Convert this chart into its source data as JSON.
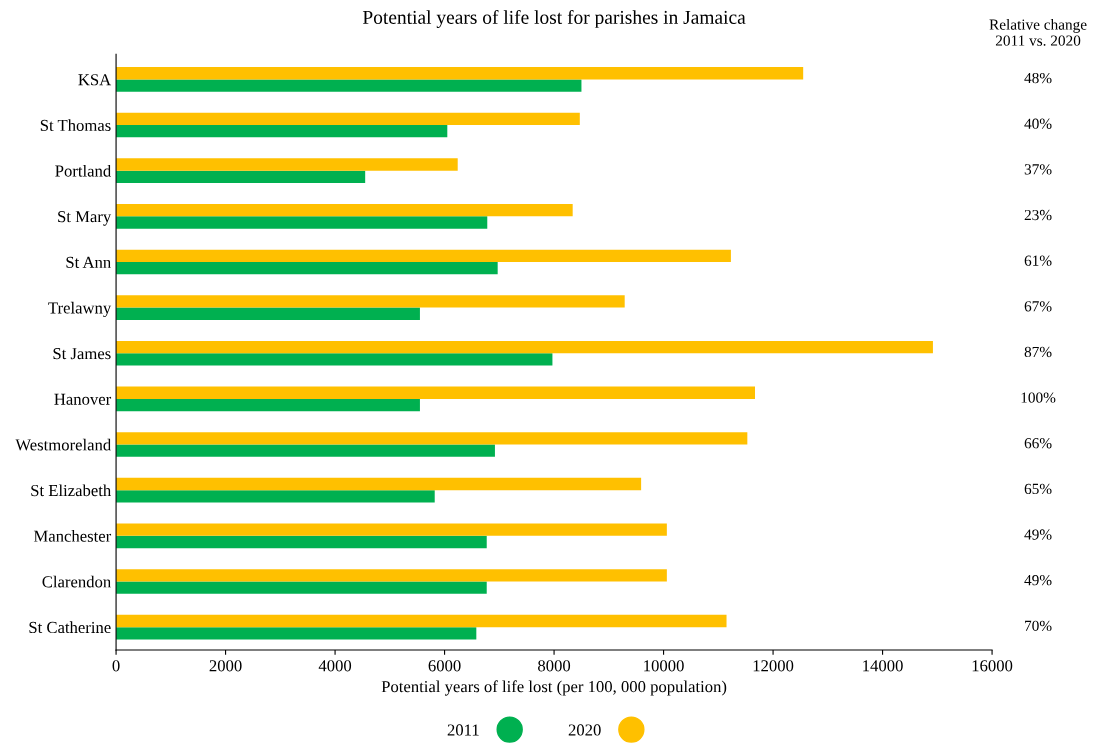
{
  "chart_data": {
    "type": "bar",
    "orientation": "horizontal",
    "title": "Potential years of life lost for parishes in Jamaica",
    "xlabel": "Potential years of life lost (per 100, 000 population)",
    "categories": [
      "KSA",
      "St Thomas",
      "Portland",
      "St Mary",
      "St Ann",
      "Trelawny",
      "St James",
      "Hanover",
      "Westmoreland",
      "St Elizabeth",
      "Manchester",
      "Clarendon",
      "St Catherine"
    ],
    "series": [
      {
        "name": "2011",
        "color": "#00b050",
        "values": [
          8500,
          6050,
          4550,
          6780,
          6970,
          5550,
          7970,
          5550,
          6920,
          5820,
          6770,
          6770,
          6580
        ]
      },
      {
        "name": "2020",
        "color": "#ffc000",
        "values": [
          12550,
          8470,
          6240,
          8340,
          11230,
          9290,
          14920,
          11670,
          11530,
          9590,
          10060,
          10060,
          11150
        ]
      }
    ],
    "xlim": [
      0,
      16000
    ],
    "xticks": [
      0,
      2000,
      4000,
      6000,
      8000,
      10000,
      12000,
      14000,
      16000
    ],
    "grid": false,
    "legend": "bottom",
    "marker": "circle",
    "annotations": [
      "Relative change\n2011 vs. 2020",
      "48%",
      "40%",
      "37%",
      "23%",
      "61%",
      "67%",
      "87%",
      "100%",
      "66%",
      "65%",
      "49%",
      "49%",
      "70%"
    ]
  }
}
